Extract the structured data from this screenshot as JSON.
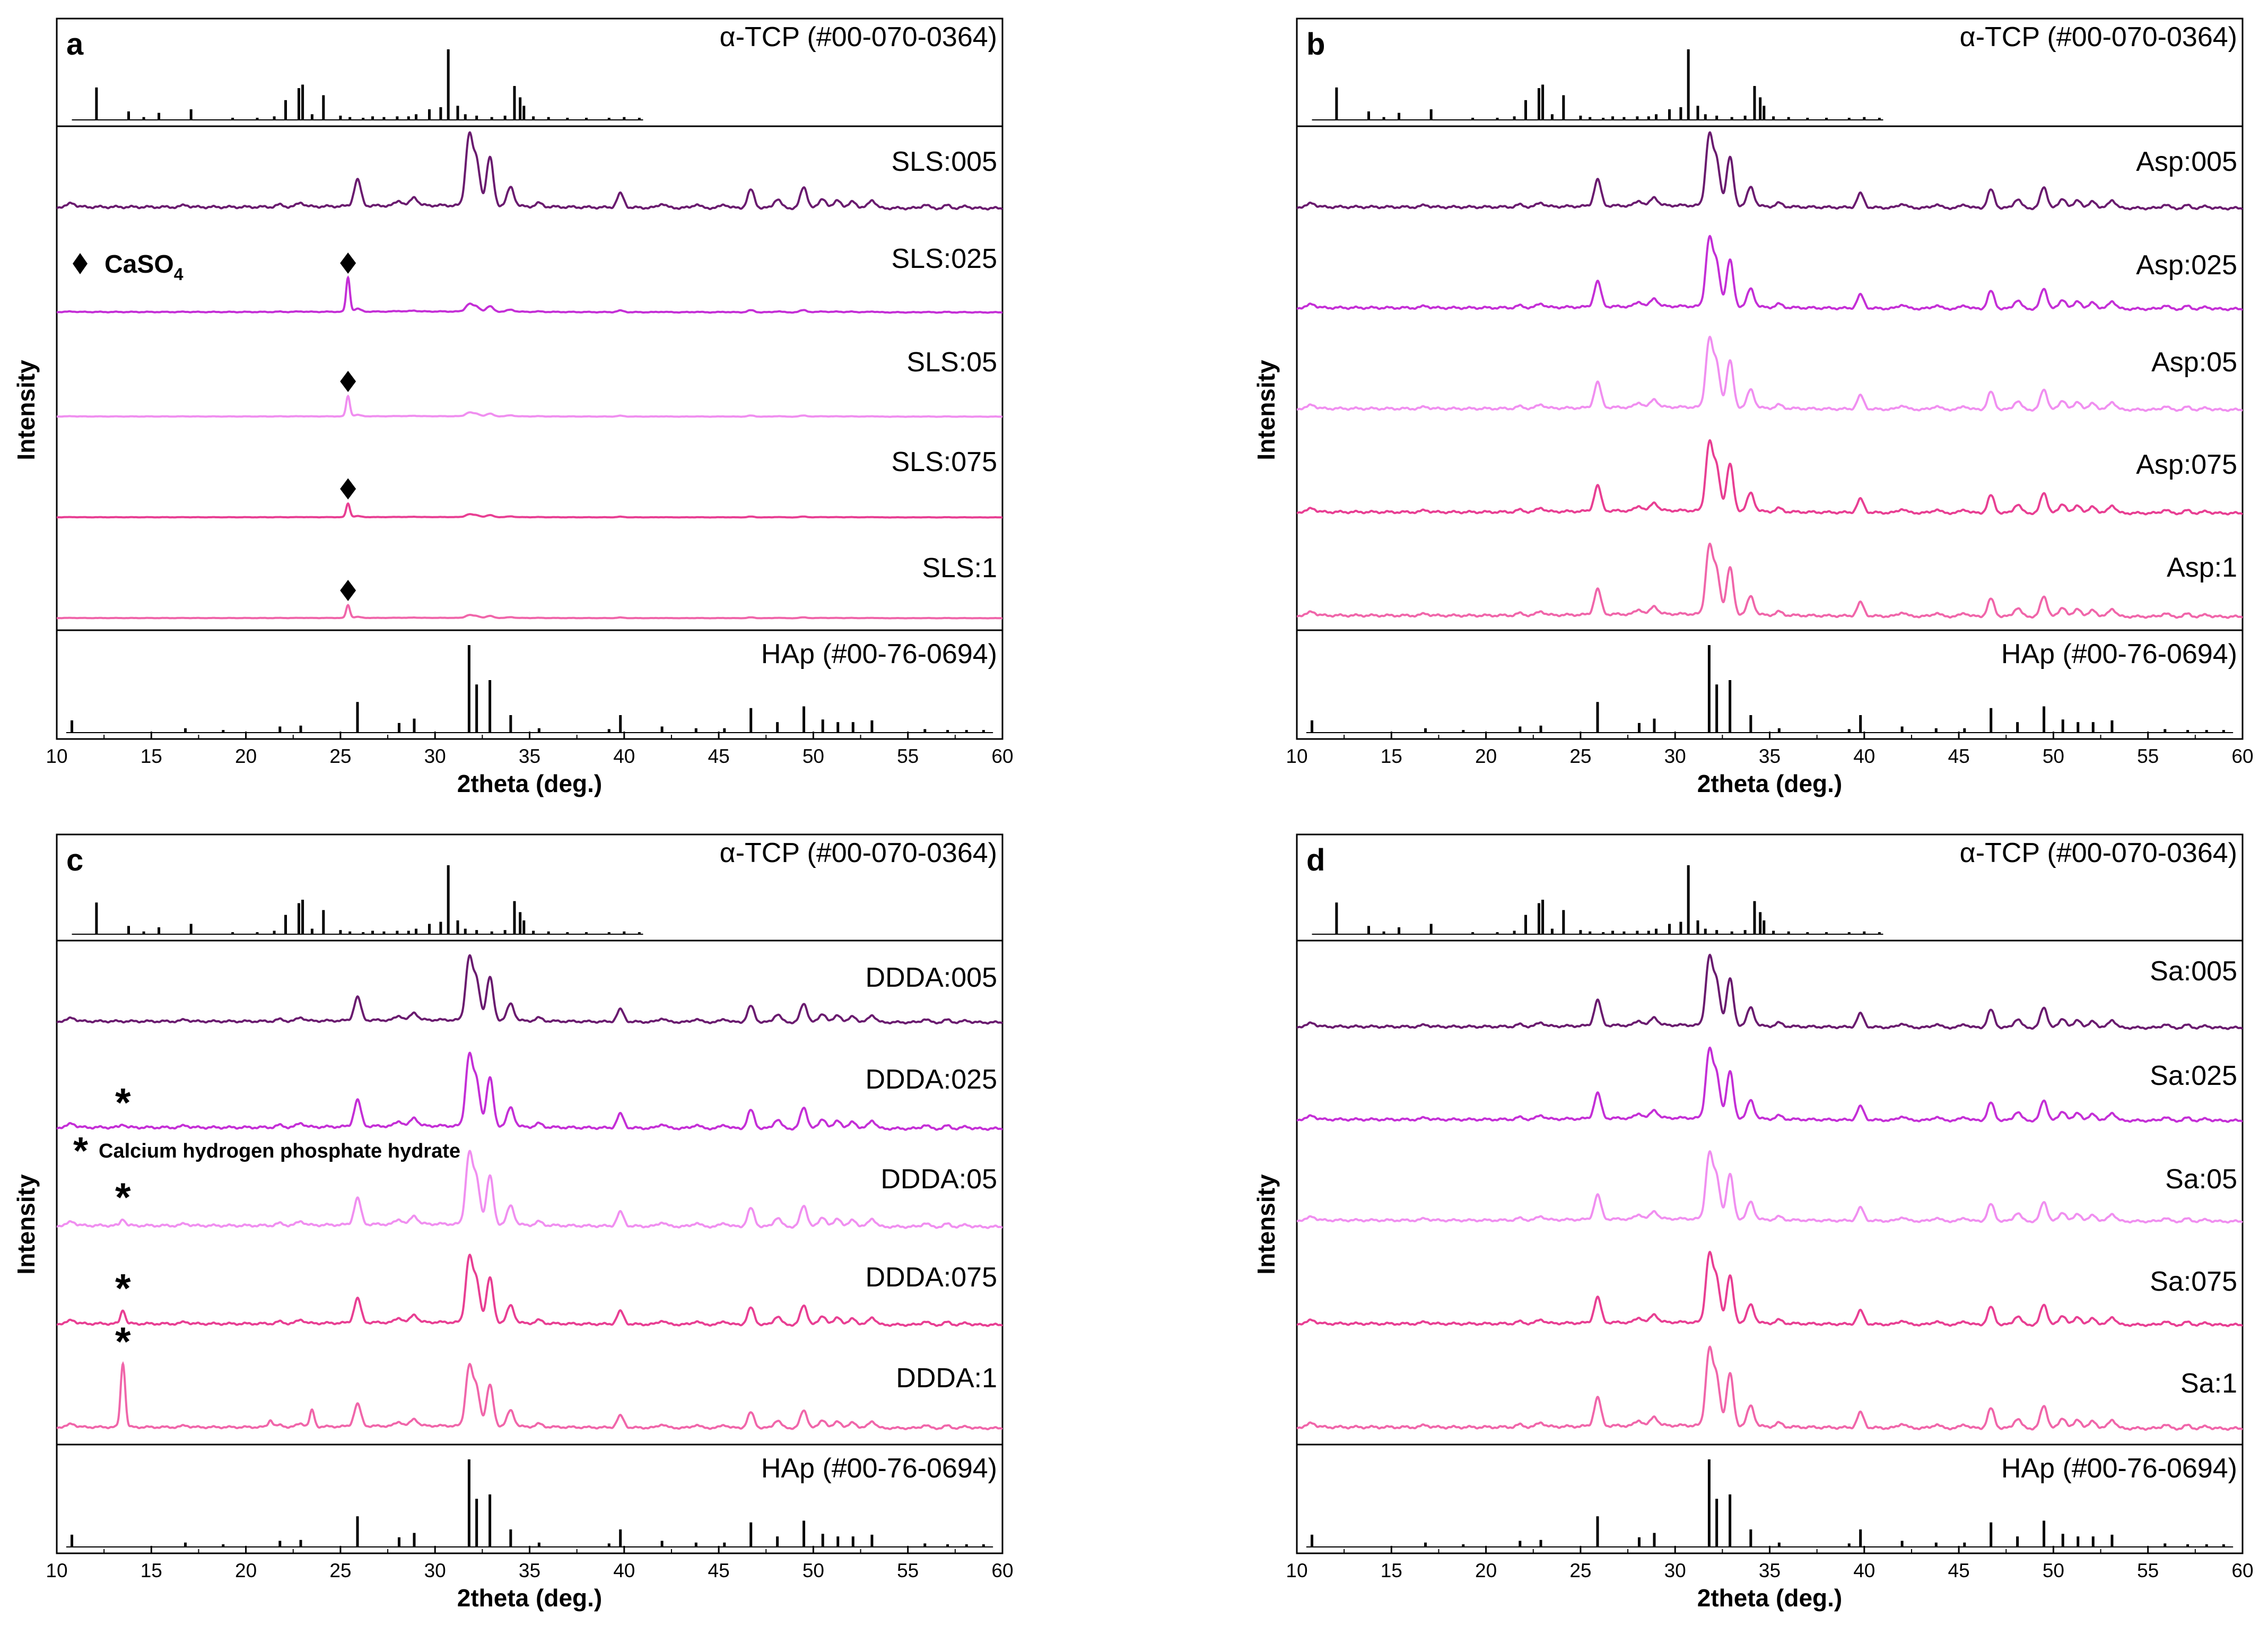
{
  "chart_data": [
    {
      "type": "line",
      "panel": "a",
      "xlabel": "2theta (deg.)",
      "ylabel": "Intensity",
      "xlim": [
        10,
        60
      ],
      "xticks": [
        10,
        15,
        20,
        25,
        30,
        35,
        40,
        45,
        50,
        55,
        60
      ],
      "reference_top": {
        "name": "α-TCP (#00-070-0364)"
      },
      "reference_bottom": {
        "name": "HAp (#00-76-0694)"
      },
      "series": [
        {
          "name": "SLS:005",
          "color": "#6a1b6f",
          "caso4_peak_25_4": 0
        },
        {
          "name": "SLS:025",
          "color": "#c42fd6",
          "caso4_peak_25_4": 1.6
        },
        {
          "name": "SLS:05",
          "color": "#f08ff0",
          "caso4_peak_25_4": 1.9
        },
        {
          "name": "SLS:075",
          "color": "#e83f93",
          "caso4_peak_25_4": 1.7
        },
        {
          "name": "SLS:1",
          "color": "#f066aa",
          "caso4_peak_25_4": 1.6
        }
      ],
      "annotation": {
        "symbol": "◆",
        "text": "CaSO",
        "subscript": "4",
        "peak_2theta": 25.4
      }
    },
    {
      "type": "line",
      "panel": "b",
      "xlabel": "2theta (deg.)",
      "ylabel": "Intensity",
      "xlim": [
        10,
        60
      ],
      "xticks": [
        10,
        15,
        20,
        25,
        30,
        35,
        40,
        45,
        50,
        55,
        60
      ],
      "reference_top": {
        "name": "α-TCP (#00-070-0364)"
      },
      "reference_bottom": {
        "name": "HAp (#00-76-0694)"
      },
      "series": [
        {
          "name": "Asp:005",
          "color": "#6a1b6f"
        },
        {
          "name": "Asp:025",
          "color": "#c42fd6"
        },
        {
          "name": "Asp:05",
          "color": "#f08ff0"
        },
        {
          "name": "Asp:075",
          "color": "#e83f93"
        },
        {
          "name": "Asp:1",
          "color": "#f066aa"
        }
      ]
    },
    {
      "type": "line",
      "panel": "c",
      "xlabel": "2theta (deg.)",
      "ylabel": "Intensity",
      "xlim": [
        10,
        60
      ],
      "xticks": [
        10,
        15,
        20,
        25,
        30,
        35,
        40,
        45,
        50,
        55,
        60
      ],
      "reference_top": {
        "name": "α-TCP (#00-070-0364)"
      },
      "reference_bottom": {
        "name": "HAp (#00-76-0694)"
      },
      "series": [
        {
          "name": "DDDA:005",
          "color": "#6a1b6f",
          "dcpd_peak_13_5": 0
        },
        {
          "name": "DDDA:025",
          "color": "#c42fd6",
          "dcpd_peak_13_5": 0.05
        },
        {
          "name": "DDDA:05",
          "color": "#f08ff0",
          "dcpd_peak_13_5": 0.1
        },
        {
          "name": "DDDA:075",
          "color": "#e83f93",
          "dcpd_peak_13_5": 0.22
        },
        {
          "name": "DDDA:1",
          "color": "#f066aa",
          "dcpd_peak_13_5": 1.1
        }
      ],
      "annotation": {
        "symbol": "*",
        "text": "Calcium hydrogen phosphate hydrate",
        "peak_2theta": 13.5
      }
    },
    {
      "type": "line",
      "panel": "d",
      "xlabel": "2theta (deg.)",
      "ylabel": "Intensity",
      "xlim": [
        10,
        60
      ],
      "xticks": [
        10,
        15,
        20,
        25,
        30,
        35,
        40,
        45,
        50,
        55,
        60
      ],
      "reference_top": {
        "name": "α-TCP (#00-070-0364)"
      },
      "reference_bottom": {
        "name": "HAp (#00-76-0694)"
      },
      "series": [
        {
          "name": "Sa:005",
          "color": "#6a1b6f"
        },
        {
          "name": "Sa:025",
          "color": "#c42fd6"
        },
        {
          "name": "Sa:05",
          "color": "#f08ff0"
        },
        {
          "name": "Sa:075",
          "color": "#e83f93"
        },
        {
          "name": "Sa:1",
          "color": "#f066aa"
        }
      ]
    }
  ],
  "tcp_ref_peaks": [
    [
      12.1,
      0.46
    ],
    [
      13.8,
      0.12
    ],
    [
      14.6,
      0.04
    ],
    [
      15.4,
      0.1
    ],
    [
      17.1,
      0.15
    ],
    [
      19.3,
      0.03
    ],
    [
      20.6,
      0.03
    ],
    [
      21.5,
      0.05
    ],
    [
      22.1,
      0.28
    ],
    [
      22.8,
      0.45
    ],
    [
      23.0,
      0.5
    ],
    [
      23.5,
      0.08
    ],
    [
      24.1,
      0.35
    ],
    [
      25.0,
      0.06
    ],
    [
      25.5,
      0.04
    ],
    [
      26.2,
      0.03
    ],
    [
      26.7,
      0.05
    ],
    [
      27.3,
      0.04
    ],
    [
      28.0,
      0.05
    ],
    [
      28.6,
      0.05
    ],
    [
      29.0,
      0.08
    ],
    [
      29.7,
      0.15
    ],
    [
      30.3,
      0.18
    ],
    [
      30.7,
      1.0
    ],
    [
      31.2,
      0.2
    ],
    [
      31.6,
      0.08
    ],
    [
      32.2,
      0.06
    ],
    [
      33.0,
      0.04
    ],
    [
      33.7,
      0.06
    ],
    [
      34.2,
      0.48
    ],
    [
      34.5,
      0.32
    ],
    [
      34.7,
      0.2
    ],
    [
      35.2,
      0.05
    ],
    [
      36.0,
      0.04
    ],
    [
      37.0,
      0.03
    ],
    [
      38.0,
      0.03
    ],
    [
      39.2,
      0.03
    ],
    [
      40.0,
      0.04
    ],
    [
      40.8,
      0.03
    ]
  ],
  "hap_ref_peaks": [
    [
      10.8,
      0.14
    ],
    [
      16.8,
      0.05
    ],
    [
      18.8,
      0.03
    ],
    [
      21.8,
      0.07
    ],
    [
      22.9,
      0.08
    ],
    [
      25.9,
      0.35
    ],
    [
      28.1,
      0.11
    ],
    [
      28.9,
      0.16
    ],
    [
      31.8,
      1.0
    ],
    [
      32.2,
      0.55
    ],
    [
      32.9,
      0.6
    ],
    [
      34.0,
      0.2
    ],
    [
      35.5,
      0.05
    ],
    [
      39.2,
      0.04
    ],
    [
      39.8,
      0.2
    ],
    [
      42.0,
      0.07
    ],
    [
      43.8,
      0.05
    ],
    [
      45.3,
      0.05
    ],
    [
      46.7,
      0.28
    ],
    [
      48.1,
      0.12
    ],
    [
      49.5,
      0.3
    ],
    [
      50.5,
      0.15
    ],
    [
      51.3,
      0.12
    ],
    [
      52.1,
      0.12
    ],
    [
      53.1,
      0.14
    ],
    [
      55.9,
      0.04
    ],
    [
      57.1,
      0.03
    ],
    [
      58.1,
      0.03
    ],
    [
      59.0,
      0.03
    ]
  ]
}
